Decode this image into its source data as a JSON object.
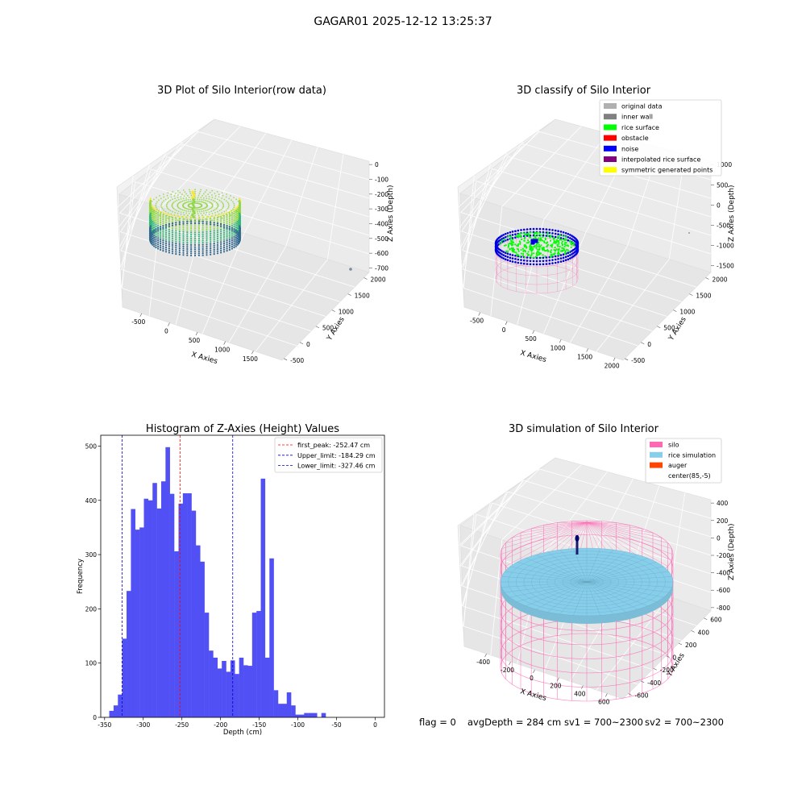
{
  "figure": {
    "title": "GAGAR01 2025-12-12 13:25:37",
    "footer": {
      "flag": "flag = 0",
      "avg_depth": "avgDepth = 284 cm",
      "sv1": "sv1 = 700~2300",
      "sv2": "sv2 = 700~2300"
    }
  },
  "colors": {
    "histogram_bar": "#5050f5",
    "first_peak": "#ff0000",
    "limits": "#0000cc",
    "rice_surface": "#00ff00",
    "noise": "#0000dd",
    "silo": "#ff69b4",
    "rice_simulation": "#87ceeb",
    "auger": "#ff4500",
    "viridis": [
      "#440154",
      "#31688e",
      "#35b779",
      "#90d743",
      "#fde725"
    ]
  },
  "chart_data": [
    {
      "id": "raw",
      "type": "scatter",
      "projection": "3d",
      "title": "3D Plot of Silo Interior(row data)",
      "xlabel": "X Axies",
      "ylabel": "Y Axies",
      "zlabel": "Z Axies (Depth)",
      "xticks": [
        "-500",
        "0",
        "500",
        "1000",
        "1500"
      ],
      "yticks": [
        "-500",
        "0",
        "500",
        "1000",
        "1500",
        "2000"
      ],
      "zticks": [
        "0",
        "-100",
        "-200",
        "-300",
        "-400",
        "-500",
        "-600",
        "-700"
      ],
      "grid": true,
      "colormap": "viridis"
    },
    {
      "id": "classify",
      "type": "scatter",
      "projection": "3d",
      "title": "3D classify of Silo Interior",
      "xlabel": "X Axies",
      "ylabel": "Y Axies",
      "zlabel": "Z Axies (Depth)",
      "xticks": [
        "-500",
        "0",
        "500",
        "1000",
        "1500",
        "2000"
      ],
      "yticks": [
        "-500",
        "0",
        "500",
        "1000",
        "1500",
        "2000"
      ],
      "zticks": [
        "1000",
        "500",
        "0",
        "-500",
        "-1000",
        "-1500"
      ],
      "grid": true,
      "legend_position": "top-right",
      "legend": [
        {
          "label": "original data",
          "color": "#b0b0b0"
        },
        {
          "label": "inner wall",
          "color": "#808080"
        },
        {
          "label": "rice surface",
          "color": "#00ff00"
        },
        {
          "label": "obstacle",
          "color": "#ff0000"
        },
        {
          "label": "noise",
          "color": "#0000ff"
        },
        {
          "label": "interpolated rice surface",
          "color": "#800080"
        },
        {
          "label": "symmetric generated points",
          "color": "#ffff00"
        }
      ]
    },
    {
      "id": "hist",
      "type": "bar",
      "title": "Histogram of Z-Axies (Height) Values",
      "xlabel": "Depth (cm)",
      "ylabel": "Frequency",
      "xlim": [
        -355,
        12
      ],
      "ylim": [
        0,
        520
      ],
      "xticks": [
        -350,
        -300,
        -250,
        -200,
        -150,
        -100,
        -50,
        0
      ],
      "yticks": [
        0,
        100,
        200,
        300,
        400,
        500
      ],
      "bin_start": -344,
      "bin_width": 5.6,
      "values": [
        12,
        22,
        42,
        145,
        233,
        384,
        346,
        350,
        403,
        400,
        432,
        385,
        435,
        498,
        412,
        306,
        394,
        413,
        413,
        381,
        317,
        287,
        193,
        123,
        110,
        90,
        104,
        84,
        105,
        80,
        110,
        96,
        95,
        193,
        196,
        440,
        110,
        293,
        50,
        25,
        25,
        46,
        22,
        5,
        5,
        8,
        8,
        8,
        0,
        8
      ],
      "legend_position": "top-right",
      "lines": [
        {
          "label": "first_peak: -252.47 cm",
          "x": -252.47,
          "color": "#ff0000"
        },
        {
          "label": "Upper_limit: -184.29 cm",
          "x": -184.29,
          "color": "#0000cc"
        },
        {
          "label": "Lower_limit: -327.46 cm",
          "x": -327.46,
          "color": "#0000cc"
        }
      ]
    },
    {
      "id": "sim",
      "type": "scatter",
      "projection": "3d",
      "title": "3D simulation of Silo Interior",
      "xlabel": "X Axies",
      "ylabel": "Y Axies",
      "zlabel": "Z Axies (Depth)",
      "xticks": [
        "-400",
        "-200",
        "0",
        "200",
        "400",
        "600"
      ],
      "yticks": [
        "-600",
        "-400",
        "-200",
        "0",
        "200",
        "400",
        "600"
      ],
      "zticks": [
        "400",
        "200",
        "0",
        "-200",
        "-400",
        "-600",
        "-800"
      ],
      "grid": true,
      "legend_position": "top-right",
      "legend": [
        {
          "label": "silo",
          "color": "#ff69b4"
        },
        {
          "label": "rice simulation",
          "color": "#87ceeb"
        },
        {
          "label": "auger",
          "color": "#ff4500"
        },
        {
          "label": "center(85,-5)",
          "color": ""
        }
      ]
    }
  ]
}
